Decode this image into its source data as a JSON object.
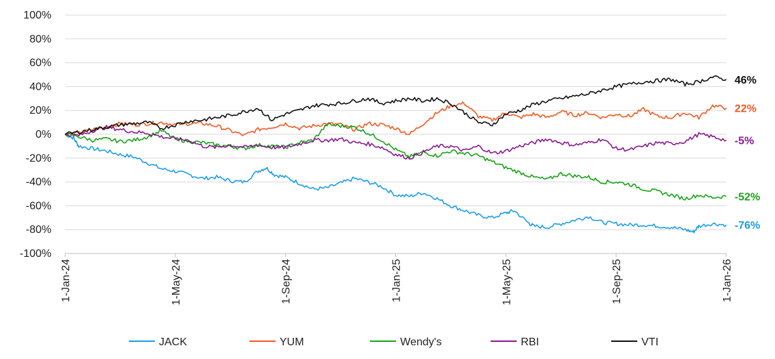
{
  "chart_data": {
    "type": "line",
    "title": "",
    "xlabel": "",
    "ylabel": "",
    "ylim": [
      -100,
      100
    ],
    "yticks": [
      100,
      80,
      60,
      40,
      20,
      0,
      -20,
      -40,
      -60,
      -80,
      -100
    ],
    "ytick_labels": [
      "100%",
      "80%",
      "60%",
      "40%",
      "20%",
      "0%",
      "-20%",
      "-40%",
      "-60%",
      "-80%",
      "-100%"
    ],
    "x_range_months": [
      0,
      24
    ],
    "xticks": [
      {
        "label": "1-Jan-24",
        "month": 0
      },
      {
        "label": "1-May-24",
        "month": 4
      },
      {
        "label": "1-Sep-24",
        "month": 8
      },
      {
        "label": "1-Jan-25",
        "month": 12
      },
      {
        "label": "1-May-25",
        "month": 16
      },
      {
        "label": "1-Sep-25",
        "month": 20
      },
      {
        "label": "1-Jan-26",
        "month": 24
      }
    ],
    "legend_position": "bottom",
    "series": [
      {
        "name": "JACK",
        "color": "#1a9ee6",
        "end_label": "-76%",
        "points": [
          [
            0,
            0
          ],
          [
            0.3,
            -3
          ],
          [
            0.5,
            -10
          ],
          [
            1,
            -12
          ],
          [
            1.5,
            -14
          ],
          [
            2,
            -17
          ],
          [
            2.5,
            -19
          ],
          [
            3,
            -24
          ],
          [
            3.5,
            -29
          ],
          [
            4,
            -31
          ],
          [
            4.5,
            -34
          ],
          [
            5,
            -37
          ],
          [
            5.5,
            -36
          ],
          [
            6,
            -39
          ],
          [
            6.5,
            -40
          ],
          [
            7,
            -31
          ],
          [
            7.3,
            -28
          ],
          [
            7.6,
            -34
          ],
          [
            8,
            -36
          ],
          [
            8.5,
            -41
          ],
          [
            9,
            -46
          ],
          [
            9.5,
            -45
          ],
          [
            10,
            -41
          ],
          [
            10.5,
            -37
          ],
          [
            11,
            -40
          ],
          [
            11.5,
            -44
          ],
          [
            12,
            -51
          ],
          [
            12.5,
            -52
          ],
          [
            13,
            -49
          ],
          [
            13.5,
            -54
          ],
          [
            14,
            -60
          ],
          [
            14.5,
            -64
          ],
          [
            15,
            -68
          ],
          [
            15.5,
            -70
          ],
          [
            16,
            -66
          ],
          [
            16.3,
            -64
          ],
          [
            16.8,
            -74
          ],
          [
            17,
            -77
          ],
          [
            17.5,
            -78
          ],
          [
            18,
            -75
          ],
          [
            18.5,
            -72
          ],
          [
            19,
            -69
          ],
          [
            19.5,
            -74
          ],
          [
            20,
            -75
          ],
          [
            20.5,
            -76
          ],
          [
            21,
            -76
          ],
          [
            21.5,
            -77
          ],
          [
            22,
            -78
          ],
          [
            22.5,
            -80
          ],
          [
            22.8,
            -82
          ],
          [
            23,
            -77
          ],
          [
            23.5,
            -75
          ],
          [
            24,
            -76
          ]
        ]
      },
      {
        "name": "YUM",
        "color": "#f05a1f",
        "end_label": "22%",
        "points": [
          [
            0,
            0
          ],
          [
            0.5,
            1
          ],
          [
            1,
            4
          ],
          [
            1.5,
            6
          ],
          [
            2,
            9
          ],
          [
            2.5,
            8
          ],
          [
            3,
            9
          ],
          [
            3.5,
            10
          ],
          [
            4,
            8
          ],
          [
            4.5,
            9
          ],
          [
            5,
            9
          ],
          [
            5.5,
            7
          ],
          [
            6,
            3
          ],
          [
            6.5,
            -1
          ],
          [
            7,
            4
          ],
          [
            7.5,
            6
          ],
          [
            8,
            9
          ],
          [
            8.5,
            5
          ],
          [
            9,
            7
          ],
          [
            9.5,
            9
          ],
          [
            10,
            8
          ],
          [
            10.5,
            4
          ],
          [
            11,
            9
          ],
          [
            11.5,
            8
          ],
          [
            12,
            5
          ],
          [
            12.5,
            0
          ],
          [
            13,
            9
          ],
          [
            13.5,
            18
          ],
          [
            14,
            24
          ],
          [
            14.5,
            26
          ],
          [
            15,
            15
          ],
          [
            15.5,
            12
          ],
          [
            16,
            18
          ],
          [
            16.5,
            14
          ],
          [
            17,
            17
          ],
          [
            17.5,
            14
          ],
          [
            18,
            19
          ],
          [
            18.5,
            16
          ],
          [
            19,
            18
          ],
          [
            19.5,
            14
          ],
          [
            20,
            17
          ],
          [
            20.5,
            15
          ],
          [
            21,
            21
          ],
          [
            21.5,
            15
          ],
          [
            22,
            14
          ],
          [
            22.5,
            18
          ],
          [
            23,
            14
          ],
          [
            23.5,
            24
          ],
          [
            24,
            22
          ]
        ]
      },
      {
        "name": "Wendy's",
        "color": "#17a317",
        "end_label": "-52%",
        "points": [
          [
            0,
            0
          ],
          [
            0.5,
            -2
          ],
          [
            1,
            -5
          ],
          [
            1.5,
            -4
          ],
          [
            2,
            -6
          ],
          [
            2.5,
            -5
          ],
          [
            3,
            -2
          ],
          [
            3.5,
            3
          ],
          [
            4,
            -4
          ],
          [
            4.5,
            -6
          ],
          [
            5,
            -7
          ],
          [
            5.5,
            -9
          ],
          [
            6,
            -10
          ],
          [
            6.5,
            -12
          ],
          [
            7,
            -9
          ],
          [
            7.5,
            -10
          ],
          [
            8,
            -11
          ],
          [
            8.5,
            -7
          ],
          [
            9,
            -5
          ],
          [
            9.5,
            8
          ],
          [
            10,
            7
          ],
          [
            10.5,
            6
          ],
          [
            11,
            1
          ],
          [
            11.5,
            -5
          ],
          [
            12,
            -13
          ],
          [
            12.5,
            -19
          ],
          [
            13,
            -15
          ],
          [
            13.5,
            -18
          ],
          [
            14,
            -14
          ],
          [
            14.5,
            -16
          ],
          [
            15,
            -18
          ],
          [
            15.5,
            -23
          ],
          [
            16,
            -28
          ],
          [
            16.5,
            -32
          ],
          [
            17,
            -36
          ],
          [
            17.5,
            -38
          ],
          [
            18,
            -33
          ],
          [
            18.5,
            -35
          ],
          [
            19,
            -36
          ],
          [
            19.5,
            -40
          ],
          [
            20,
            -40
          ],
          [
            20.5,
            -42
          ],
          [
            21,
            -46
          ],
          [
            21.5,
            -48
          ],
          [
            22,
            -51
          ],
          [
            22.5,
            -54
          ],
          [
            23,
            -51
          ],
          [
            23.5,
            -53
          ],
          [
            24,
            -52
          ]
        ]
      },
      {
        "name": "RBI",
        "color": "#881a8f",
        "end_label": "-5%",
        "points": [
          [
            0,
            0
          ],
          [
            0.5,
            -1
          ],
          [
            1,
            3
          ],
          [
            1.5,
            6
          ],
          [
            2,
            4
          ],
          [
            2.5,
            2
          ],
          [
            3,
            1
          ],
          [
            3.5,
            -2
          ],
          [
            4,
            -4
          ],
          [
            4.5,
            -5
          ],
          [
            5,
            -10
          ],
          [
            5.5,
            -11
          ],
          [
            6,
            -9
          ],
          [
            6.5,
            -11
          ],
          [
            7,
            -9
          ],
          [
            7.5,
            -11
          ],
          [
            8,
            -11
          ],
          [
            8.5,
            -8
          ],
          [
            9,
            -5
          ],
          [
            9.5,
            -5
          ],
          [
            10,
            -4
          ],
          [
            10.5,
            -7
          ],
          [
            11,
            -8
          ],
          [
            11.5,
            -11
          ],
          [
            12,
            -17
          ],
          [
            12.5,
            -20
          ],
          [
            13,
            -15
          ],
          [
            13.5,
            -10
          ],
          [
            14,
            -10
          ],
          [
            14.5,
            -14
          ],
          [
            15,
            -10
          ],
          [
            15.5,
            -16
          ],
          [
            16,
            -14
          ],
          [
            16.5,
            -10
          ],
          [
            17,
            -7
          ],
          [
            17.5,
            -4
          ],
          [
            18,
            -7
          ],
          [
            18.5,
            -9
          ],
          [
            19,
            -7
          ],
          [
            19.5,
            -4
          ],
          [
            20,
            -12
          ],
          [
            20.5,
            -13
          ],
          [
            21,
            -10
          ],
          [
            21.5,
            -7
          ],
          [
            22,
            -8
          ],
          [
            22.5,
            -6
          ],
          [
            23,
            0
          ],
          [
            23.5,
            -2
          ],
          [
            24,
            -5
          ]
        ]
      },
      {
        "name": "VTI",
        "color": "#111111",
        "end_label": "46%",
        "points": [
          [
            0,
            0
          ],
          [
            0.5,
            2
          ],
          [
            1,
            4
          ],
          [
            1.5,
            6
          ],
          [
            2,
            8
          ],
          [
            2.5,
            9
          ],
          [
            3,
            10
          ],
          [
            3.5,
            5
          ],
          [
            4,
            8
          ],
          [
            4.5,
            11
          ],
          [
            5,
            12
          ],
          [
            5.5,
            14
          ],
          [
            6,
            16
          ],
          [
            6.5,
            19
          ],
          [
            7,
            22
          ],
          [
            7.5,
            12
          ],
          [
            8,
            17
          ],
          [
            8.5,
            20
          ],
          [
            9,
            24
          ],
          [
            9.5,
            25
          ],
          [
            10,
            26
          ],
          [
            10.5,
            28
          ],
          [
            11,
            30
          ],
          [
            11.5,
            26
          ],
          [
            12,
            28
          ],
          [
            12.5,
            30
          ],
          [
            13,
            28
          ],
          [
            13.5,
            30
          ],
          [
            14,
            26
          ],
          [
            14.5,
            18
          ],
          [
            15,
            10
          ],
          [
            15.5,
            8
          ],
          [
            16,
            17
          ],
          [
            16.5,
            20
          ],
          [
            17,
            25
          ],
          [
            17.5,
            28
          ],
          [
            18,
            30
          ],
          [
            18.5,
            32
          ],
          [
            19,
            34
          ],
          [
            19.5,
            37
          ],
          [
            20,
            40
          ],
          [
            20.5,
            42
          ],
          [
            21,
            44
          ],
          [
            21.5,
            45
          ],
          [
            22,
            46
          ],
          [
            22.5,
            42
          ],
          [
            23,
            44
          ],
          [
            23.5,
            48
          ],
          [
            24,
            46
          ]
        ]
      }
    ]
  }
}
